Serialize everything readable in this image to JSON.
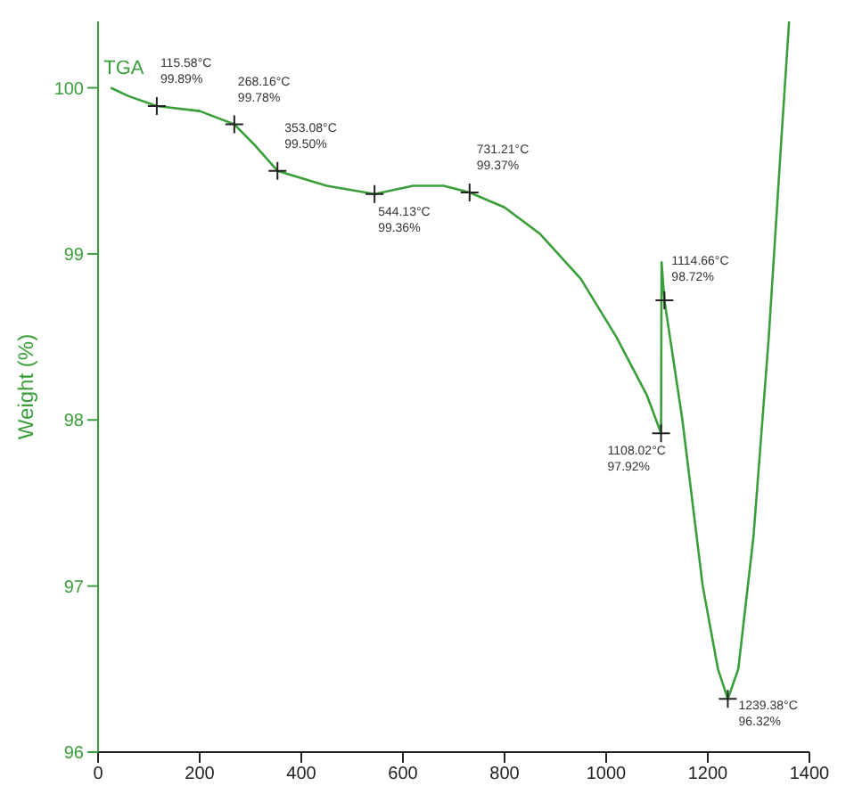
{
  "chart_data": {
    "type": "line",
    "ylabel": "Weight (%)",
    "xlim": [
      0,
      1400
    ],
    "xticks": [
      0,
      200,
      400,
      600,
      800,
      1000,
      1200,
      1400
    ],
    "ylim": [
      96,
      100.4
    ],
    "yticks": [
      96,
      97,
      98,
      99,
      100
    ],
    "grid": false,
    "legend": false,
    "marker": "none",
    "line_style": "solid",
    "series": [
      {
        "name": "TGA",
        "color": "#3a9e3a",
        "x": [
          25,
          60,
          115.58,
          200,
          268.16,
          310,
          353.08,
          450,
          544.13,
          620,
          680,
          731.21,
          800,
          870,
          950,
          1020,
          1080,
          1108.02,
          1109,
          1114.66,
          1150,
          1190,
          1220,
          1239.38,
          1260,
          1290,
          1320,
          1345,
          1360
        ],
        "values": [
          100.0,
          99.95,
          99.89,
          99.86,
          99.78,
          99.65,
          99.5,
          99.41,
          99.36,
          99.41,
          99.41,
          99.37,
          99.28,
          99.12,
          98.85,
          98.5,
          98.15,
          97.92,
          98.95,
          98.72,
          98.0,
          97.0,
          96.5,
          96.32,
          96.5,
          97.3,
          98.5,
          99.7,
          100.4
        ]
      }
    ],
    "annotations": [
      {
        "text": "115.58°C\n99.89%",
        "x": 115.58,
        "y": 99.89
      },
      {
        "text": "268.16°C\n99.78%",
        "x": 268.16,
        "y": 99.78
      },
      {
        "text": "353.08°C\n99.50%",
        "x": 353.08,
        "y": 99.5
      },
      {
        "text": "544.13°C\n99.36%",
        "x": 544.13,
        "y": 99.36
      },
      {
        "text": "731.21°C\n99.37%",
        "x": 731.21,
        "y": 99.37
      },
      {
        "text": "1114.66°C\n98.72%",
        "x": 1114.66,
        "y": 98.72
      },
      {
        "text": "1108.02°C\n97.92%",
        "x": 1108.02,
        "y": 97.92
      },
      {
        "text": "1239.38°C\n96.32%",
        "x": 1239.38,
        "y": 96.32
      }
    ]
  }
}
